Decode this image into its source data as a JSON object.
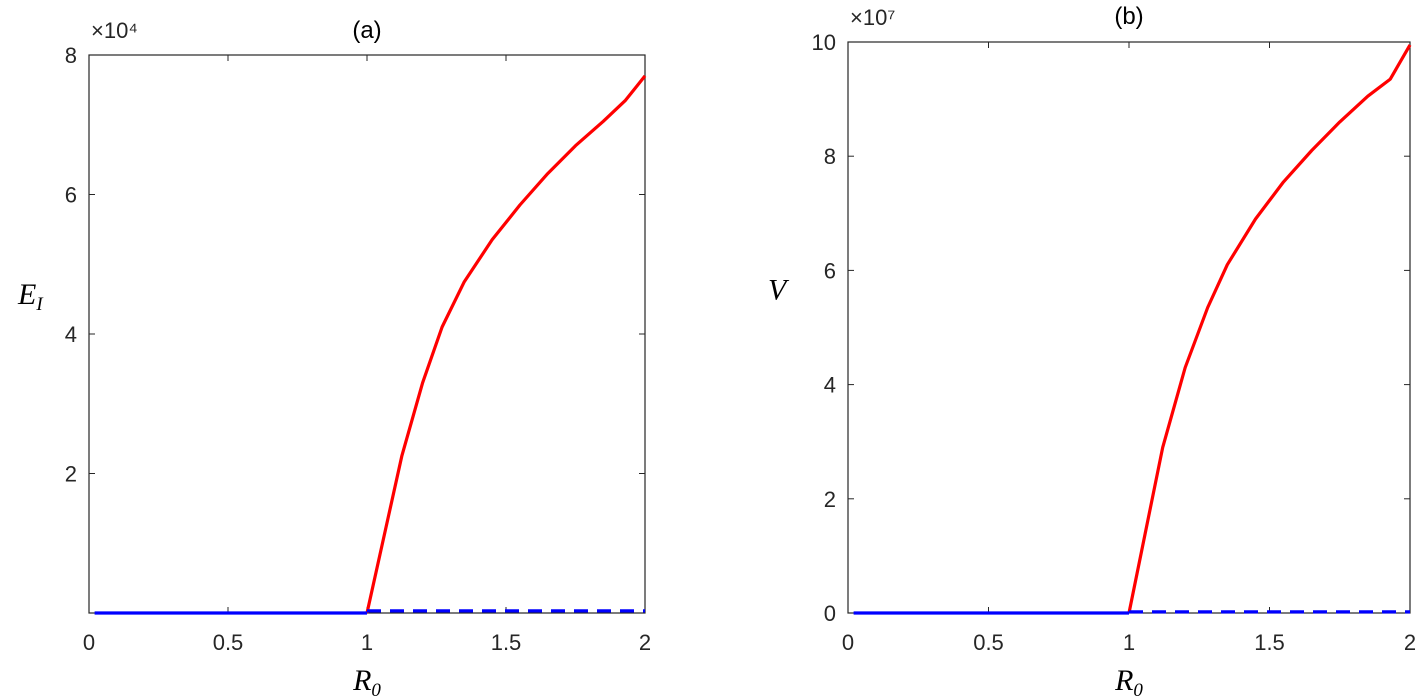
{
  "chart_data": [
    {
      "type": "line",
      "title": "(a)",
      "exponent_label": "×10⁴",
      "xlabel_main": "R",
      "xlabel_sub": "0",
      "ylabel_main": "E",
      "ylabel_sub": "I",
      "xlim": [
        0,
        2
      ],
      "ylim": [
        0,
        80000
      ],
      "xticks": [
        {
          "value": 0,
          "label": "0"
        },
        {
          "value": 0.5,
          "label": "0.5"
        },
        {
          "value": 1,
          "label": "1"
        },
        {
          "value": 1.5,
          "label": "1.5"
        },
        {
          "value": 2,
          "label": "2"
        }
      ],
      "yticks": [
        {
          "value": 20000,
          "label": "2"
        },
        {
          "value": 40000,
          "label": "4"
        },
        {
          "value": 60000,
          "label": "6"
        },
        {
          "value": 80000,
          "label": "8"
        }
      ],
      "grid": false,
      "series": [
        {
          "style": "solid",
          "color": "#ff0000",
          "x": [
            1.0,
            1.125,
            1.2,
            1.27,
            1.35,
            1.45,
            1.55,
            1.65,
            1.75,
            1.85,
            1.93,
            2.0
          ],
          "y": [
            0,
            22500,
            33000,
            41000,
            47500,
            53500,
            58500,
            63000,
            67000,
            70500,
            73500,
            77000
          ]
        },
        {
          "style": "solid",
          "color": "#0000ff",
          "x": [
            0.02,
            1.0
          ],
          "y": [
            0,
            0
          ]
        },
        {
          "style": "dashed",
          "color": "#0000ff",
          "x": [
            1.0,
            2.0
          ],
          "y": [
            300,
            300
          ]
        }
      ]
    },
    {
      "type": "line",
      "title": "(b)",
      "exponent_label": "×10⁷",
      "xlabel_main": "R",
      "xlabel_sub": "0",
      "ylabel_main": "V",
      "ylabel_sub": "",
      "xlim": [
        0,
        2
      ],
      "ylim": [
        0,
        100000000
      ],
      "xticks": [
        {
          "value": 0,
          "label": "0"
        },
        {
          "value": 0.5,
          "label": "0.5"
        },
        {
          "value": 1,
          "label": "1"
        },
        {
          "value": 1.5,
          "label": "1.5"
        },
        {
          "value": 2,
          "label": "2"
        }
      ],
      "yticks": [
        {
          "value": 0,
          "label": "0"
        },
        {
          "value": 20000000,
          "label": "2"
        },
        {
          "value": 40000000,
          "label": "4"
        },
        {
          "value": 60000000,
          "label": "6"
        },
        {
          "value": 80000000,
          "label": "8"
        },
        {
          "value": 100000000,
          "label": "10"
        }
      ],
      "grid": false,
      "series": [
        {
          "style": "solid",
          "color": "#ff0000",
          "x": [
            1.0,
            1.12,
            1.2,
            1.28,
            1.35,
            1.45,
            1.55,
            1.65,
            1.75,
            1.85,
            1.93,
            2.0
          ],
          "y": [
            0,
            29000000,
            43000000,
            53500000,
            61000000,
            69000000,
            75500000,
            81000000,
            86000000,
            90500000,
            93500000,
            99500000
          ]
        },
        {
          "style": "solid",
          "color": "#0000ff",
          "x": [
            0.02,
            1.0
          ],
          "y": [
            0,
            0
          ]
        },
        {
          "style": "dashed",
          "color": "#0000ff",
          "x": [
            1.0,
            2.0
          ],
          "y": [
            200000,
            200000
          ]
        }
      ]
    }
  ]
}
